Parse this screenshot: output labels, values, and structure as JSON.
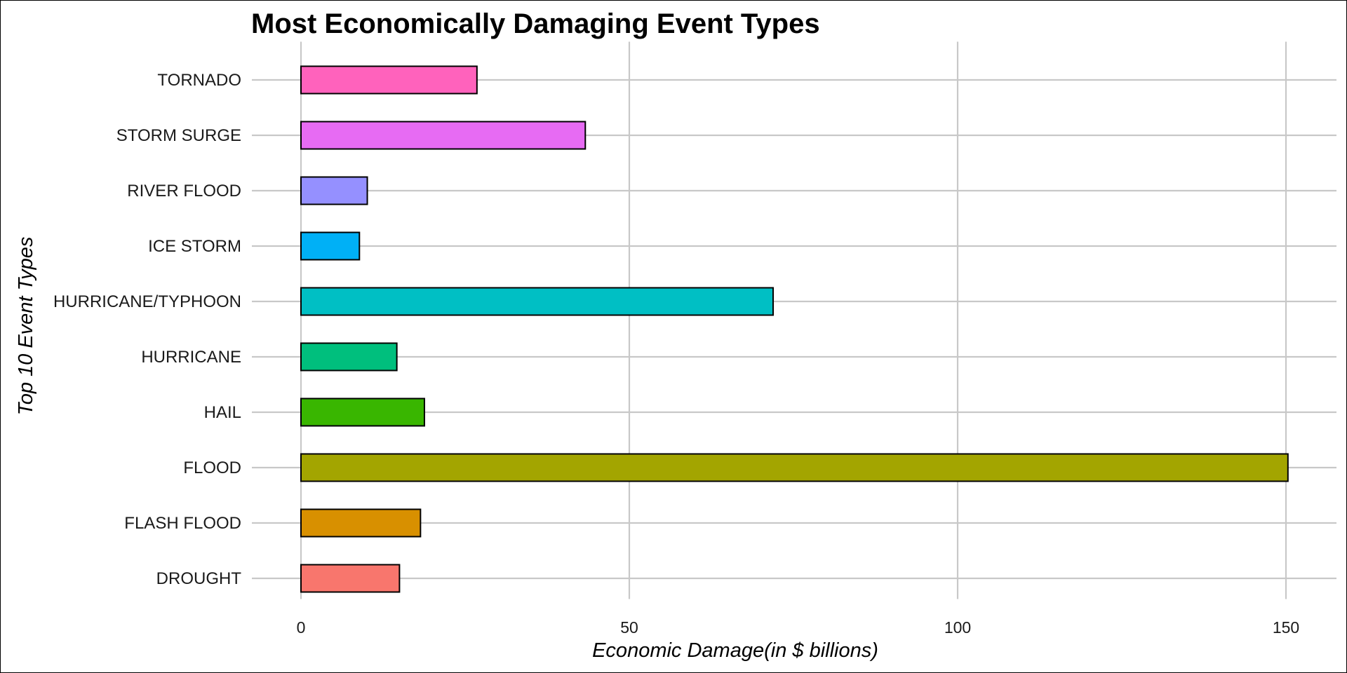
{
  "chart_data": {
    "type": "bar",
    "orientation": "horizontal",
    "title": "Most Economically Damaging Event Types",
    "xlabel": "Economic Damage(in $ billions)",
    "ylabel": "Top 10 Event Types",
    "categories": [
      "DROUGHT",
      "FLASH FLOOD",
      "FLOOD",
      "HAIL",
      "HURRICANE",
      "HURRICANE/TYPHOON",
      "ICE STORM",
      "RIVER FLOOD",
      "STORM SURGE",
      "TORNADO"
    ],
    "values": [
      15.0,
      18.2,
      150.3,
      18.8,
      14.6,
      71.9,
      8.9,
      10.1,
      43.3,
      26.8
    ],
    "colors": [
      "#F8766D",
      "#D89000",
      "#A3A500",
      "#39B600",
      "#00BF7D",
      "#00BFC4",
      "#00B0F6",
      "#9590FF",
      "#E76BF3",
      "#FF62BC"
    ],
    "xticks": [
      0,
      50,
      100,
      150
    ],
    "xlim": [
      -7.5,
      157.8
    ],
    "grid": true,
    "legend": "none"
  }
}
